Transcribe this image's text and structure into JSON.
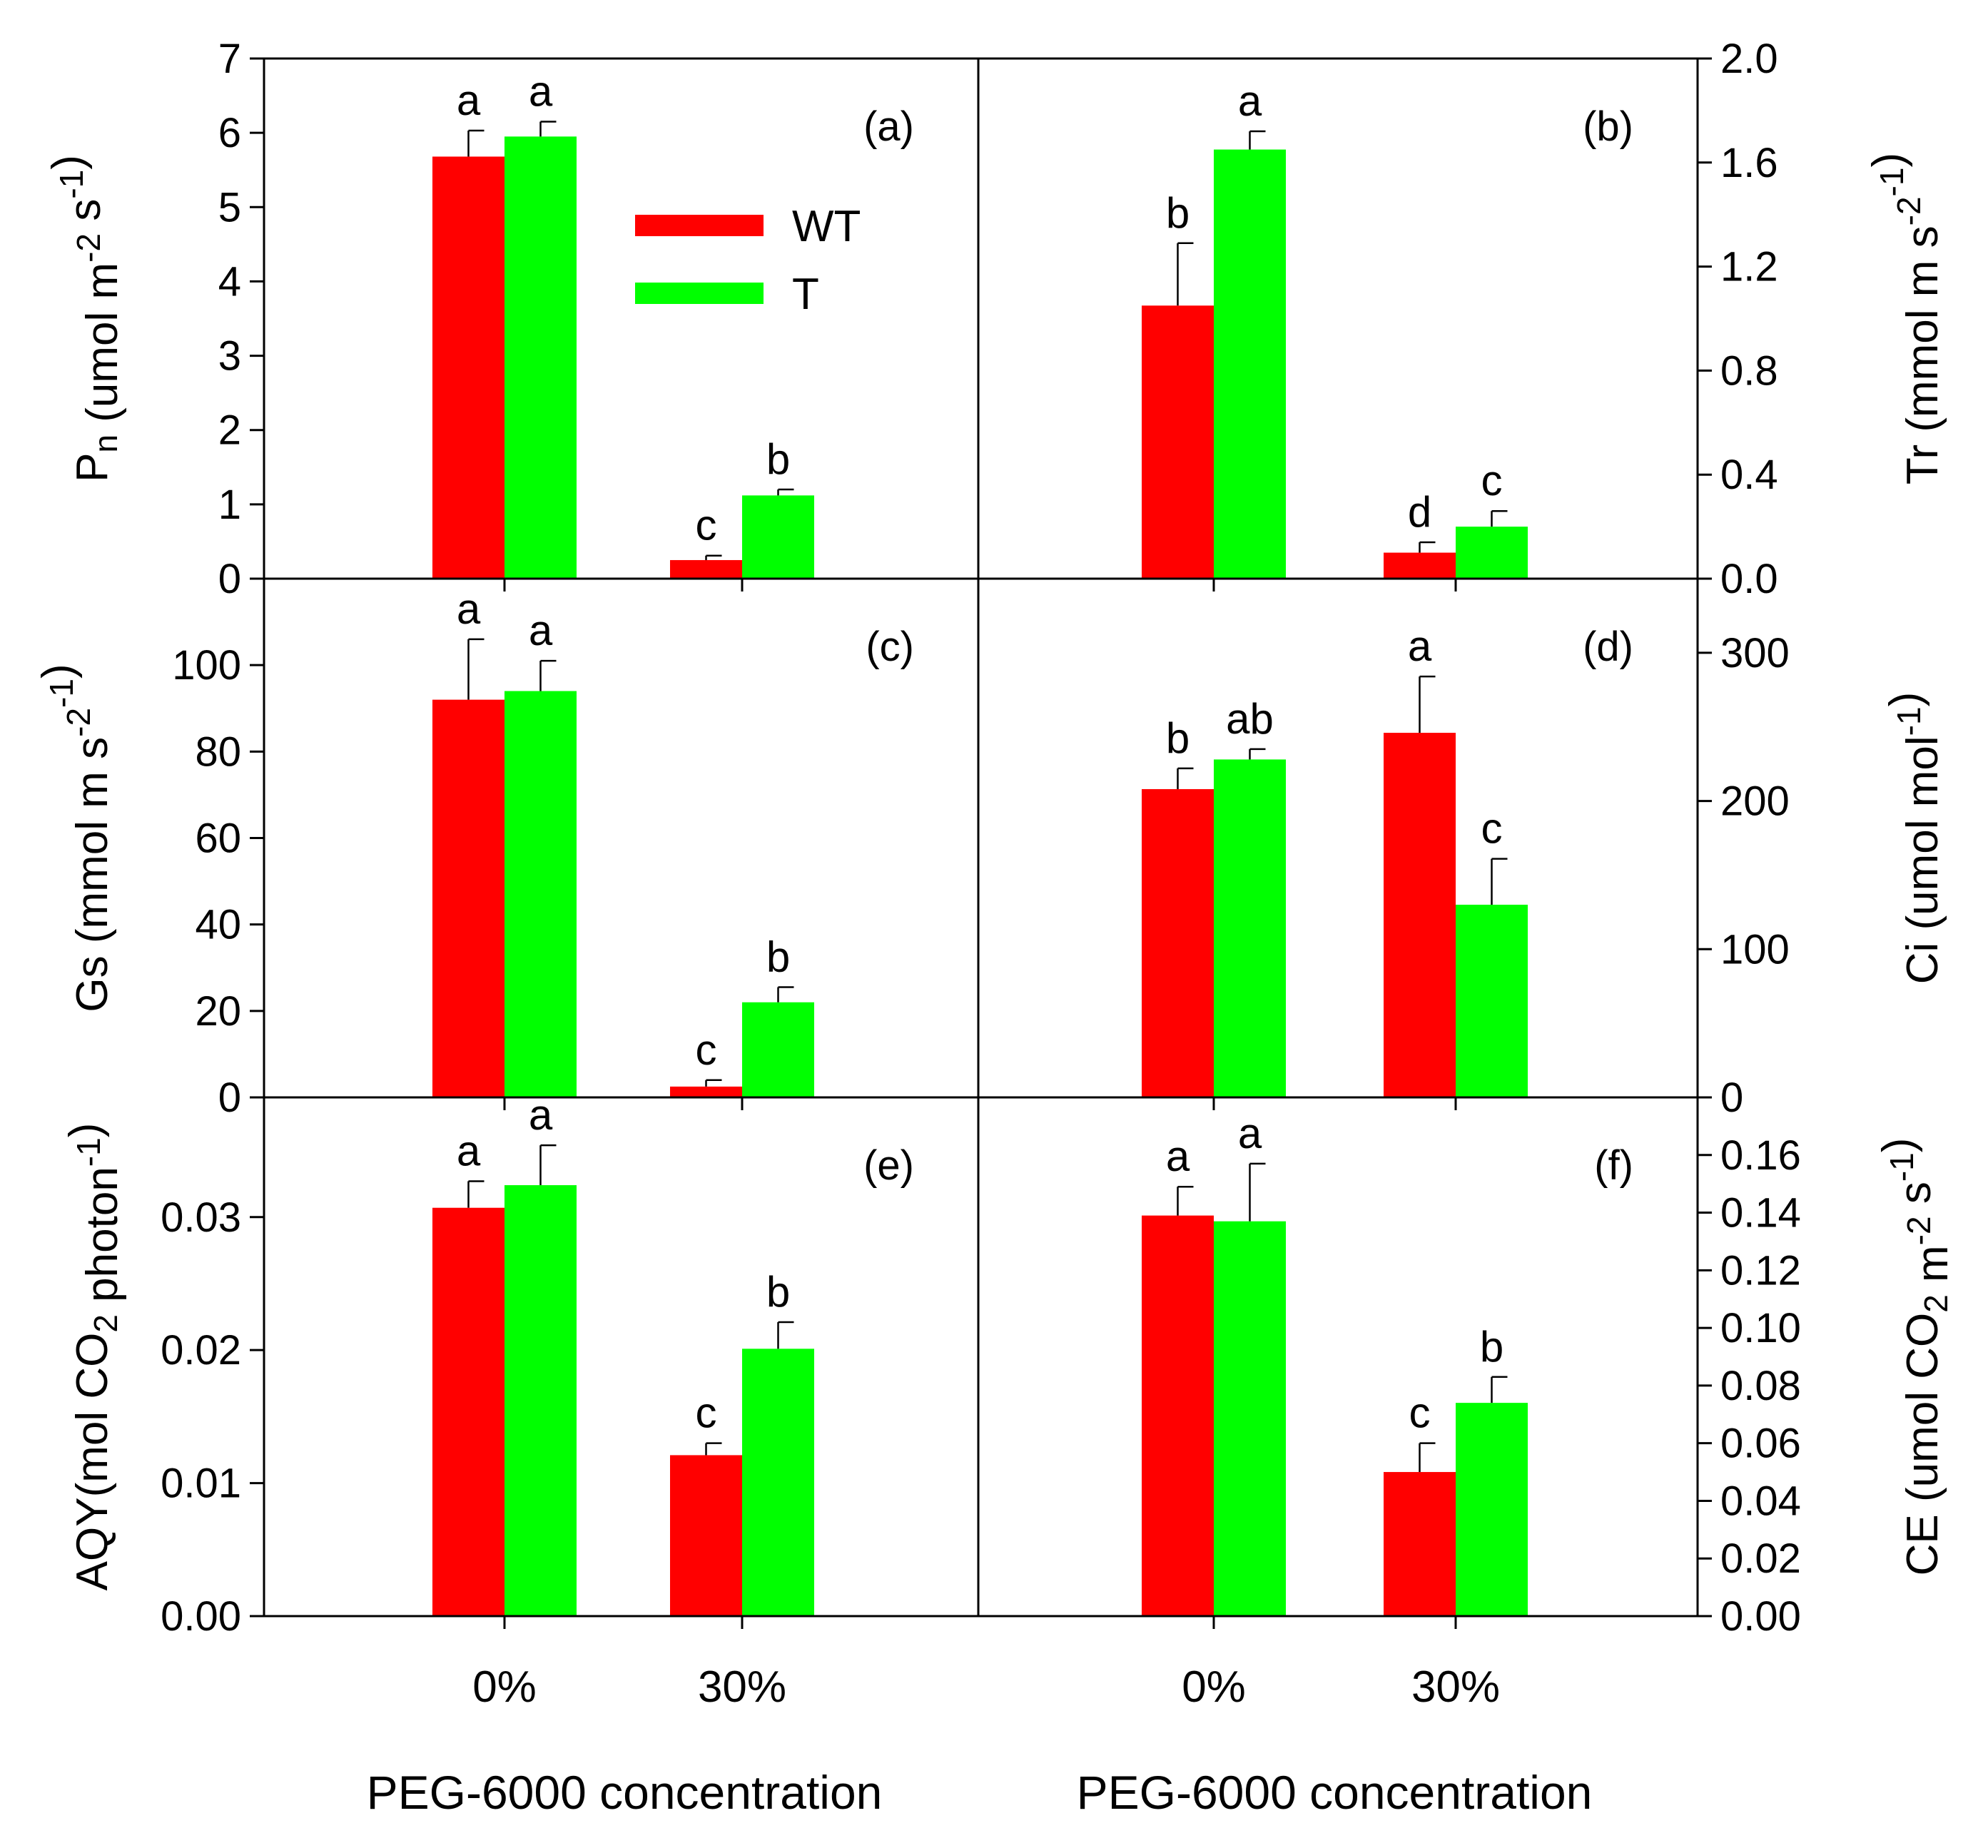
{
  "colors": {
    "wt": "#ff0000",
    "t": "#00ff00",
    "axis": "#000000"
  },
  "legend": [
    {
      "key": "wt",
      "label": "WT"
    },
    {
      "key": "t",
      "label": "T"
    }
  ],
  "x_title": "PEG-6000 concentration",
  "chart_data": [
    {
      "type": "bar",
      "panel": "(a)",
      "side": "left",
      "ylabel": "Pn (umol m-2 s-1)",
      "ylabel_parts": {
        "main": "P",
        "sub1": "n",
        "mid": " (umol m",
        "sup1": "-2",
        "mid2": " s",
        "sup2": "-1",
        "end": ")"
      },
      "ylim": [
        0,
        7
      ],
      "ticks": [
        0,
        1,
        2,
        3,
        4,
        5,
        6,
        7
      ],
      "tick_labels": [
        "0",
        "1",
        "2",
        "3",
        "4",
        "5",
        "6",
        "7"
      ],
      "categories": [
        "0%",
        "30%"
      ],
      "series": [
        {
          "name": "WT",
          "values": [
            5.68,
            0.25
          ],
          "errors": [
            0.35,
            0.06
          ],
          "letters": [
            "a",
            "c"
          ]
        },
        {
          "name": "T",
          "values": [
            5.95,
            1.12
          ],
          "errors": [
            0.2,
            0.08
          ],
          "letters": [
            "a",
            "b"
          ]
        }
      ]
    },
    {
      "type": "bar",
      "panel": "(b)",
      "side": "right",
      "ylabel": "Tr (mmol m-2 s-1)",
      "ylabel_parts": {
        "main": "Tr (mmol m",
        "sup1": "-2",
        "mid": " s",
        "sup2": "-1",
        "end": ")"
      },
      "ylim": [
        0,
        2.0
      ],
      "ticks": [
        0,
        0.4,
        0.8,
        1.2,
        1.6,
        2.0
      ],
      "tick_labels": [
        "0.0",
        "0.4",
        "0.8",
        "1.2",
        "1.6",
        "2.0"
      ],
      "categories": [
        "0%",
        "30%"
      ],
      "series": [
        {
          "name": "WT",
          "values": [
            1.05,
            0.1
          ],
          "errors": [
            0.24,
            0.04
          ],
          "letters": [
            "b",
            "d"
          ]
        },
        {
          "name": "T",
          "values": [
            1.65,
            0.2
          ],
          "errors": [
            0.07,
            0.06
          ],
          "letters": [
            "a",
            "c"
          ]
        }
      ]
    },
    {
      "type": "bar",
      "panel": "(c)",
      "side": "left",
      "ylabel": "Gs (mmol m-2 s-1)",
      "ylabel_parts": {
        "main": "Gs (mmol m",
        "sup1": "-2",
        "mid": " s",
        "sup2": "-1",
        "end": ")"
      },
      "ylim": [
        0,
        120
      ],
      "ticks": [
        0,
        20,
        40,
        60,
        80,
        100
      ],
      "tick_labels": [
        "0",
        "20",
        "40",
        "60",
        "80",
        "100"
      ],
      "categories": [
        "0%",
        "30%"
      ],
      "series": [
        {
          "name": "WT",
          "values": [
            92,
            2.5
          ],
          "errors": [
            14,
            1.5
          ],
          "letters": [
            "a",
            "c"
          ]
        },
        {
          "name": "T",
          "values": [
            94,
            22
          ],
          "errors": [
            7,
            3.5
          ],
          "letters": [
            "a",
            "b"
          ]
        }
      ]
    },
    {
      "type": "bar",
      "panel": "(d)",
      "side": "right",
      "ylabel": "Ci (umol mol-1)",
      "ylabel_parts": {
        "main": "Ci (umol mol",
        "sup1": "-1",
        "end": ")"
      },
      "ylim": [
        0,
        350
      ],
      "ticks": [
        0,
        100,
        200,
        300
      ],
      "tick_labels": [
        "0",
        "100",
        "200",
        "300"
      ],
      "categories": [
        "0%",
        "30%"
      ],
      "series": [
        {
          "name": "WT",
          "values": [
            208,
            246
          ],
          "errors": [
            14,
            38
          ],
          "letters": [
            "b",
            "a"
          ]
        },
        {
          "name": "T",
          "values": [
            228,
            130
          ],
          "errors": [
            7,
            31
          ],
          "letters": [
            "ab",
            "c"
          ]
        }
      ]
    },
    {
      "type": "bar",
      "panel": "(e)",
      "side": "left",
      "ylabel": "AQY(mol CO2 photon-1)",
      "ylabel_parts": {
        "main": "AQY(mol CO",
        "sub1": "2",
        "mid": " photon",
        "sup1": "-1",
        "end": ")"
      },
      "ylim": [
        0,
        0.039
      ],
      "ticks": [
        0,
        0.01,
        0.02,
        0.03
      ],
      "tick_labels": [
        "0.00",
        "0.01",
        "0.02",
        "0.03"
      ],
      "categories": [
        "0%",
        "30%"
      ],
      "series": [
        {
          "name": "WT",
          "values": [
            0.0307,
            0.0121
          ],
          "errors": [
            0.002,
            0.0009
          ],
          "letters": [
            "a",
            "c"
          ]
        },
        {
          "name": "T",
          "values": [
            0.0324,
            0.0201
          ],
          "errors": [
            0.003,
            0.002
          ],
          "letters": [
            "a",
            "b"
          ]
        }
      ]
    },
    {
      "type": "bar",
      "panel": "(f)",
      "side": "right",
      "ylabel": "CE (umol CO2 m-2 s-1)",
      "ylabel_parts": {
        "main": "CE (umol CO",
        "sub1": "2",
        "mid": " m",
        "sup1": "-2",
        "mid2": " s",
        "sup2": "-1",
        "end": ")"
      },
      "ylim": [
        0,
        0.18
      ],
      "ticks": [
        0,
        0.02,
        0.04,
        0.06,
        0.08,
        0.1,
        0.12,
        0.14,
        0.16
      ],
      "tick_labels": [
        "0.00",
        "0.02",
        "0.04",
        "0.06",
        "0.08",
        "0.10",
        "0.12",
        "0.14",
        "0.16"
      ],
      "categories": [
        "0%",
        "30%"
      ],
      "series": [
        {
          "name": "WT",
          "values": [
            0.139,
            0.05
          ],
          "errors": [
            0.01,
            0.01
          ],
          "letters": [
            "a",
            "c"
          ]
        },
        {
          "name": "T",
          "values": [
            0.137,
            0.074
          ],
          "errors": [
            0.02,
            0.009
          ],
          "letters": [
            "a",
            "b"
          ]
        }
      ]
    }
  ]
}
